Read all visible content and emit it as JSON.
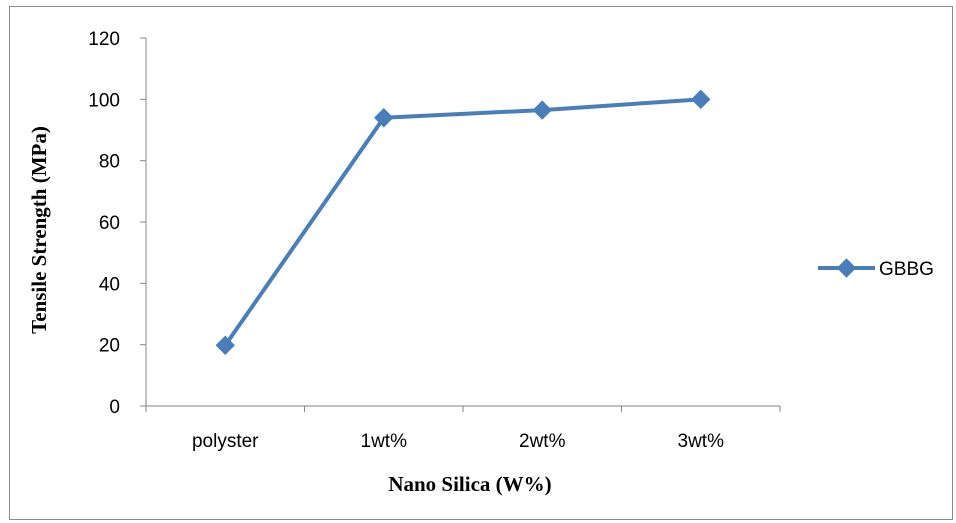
{
  "chart_data": {
    "type": "line",
    "categories": [
      "polyster",
      "1wt%",
      "2wt%",
      "3wt%"
    ],
    "series": [
      {
        "name": "GBBG",
        "values": [
          19.8,
          94,
          96.5,
          100
        ],
        "color": "#4a7ebb",
        "marker": "diamond"
      }
    ],
    "xlabel": "Nano Silica (W%)",
    "ylabel": "Tensile Strength (MPa)",
    "ylim": [
      0,
      120
    ],
    "yticks": [
      0,
      20,
      40,
      60,
      80,
      100,
      120
    ],
    "grid": false,
    "legend": "right"
  }
}
